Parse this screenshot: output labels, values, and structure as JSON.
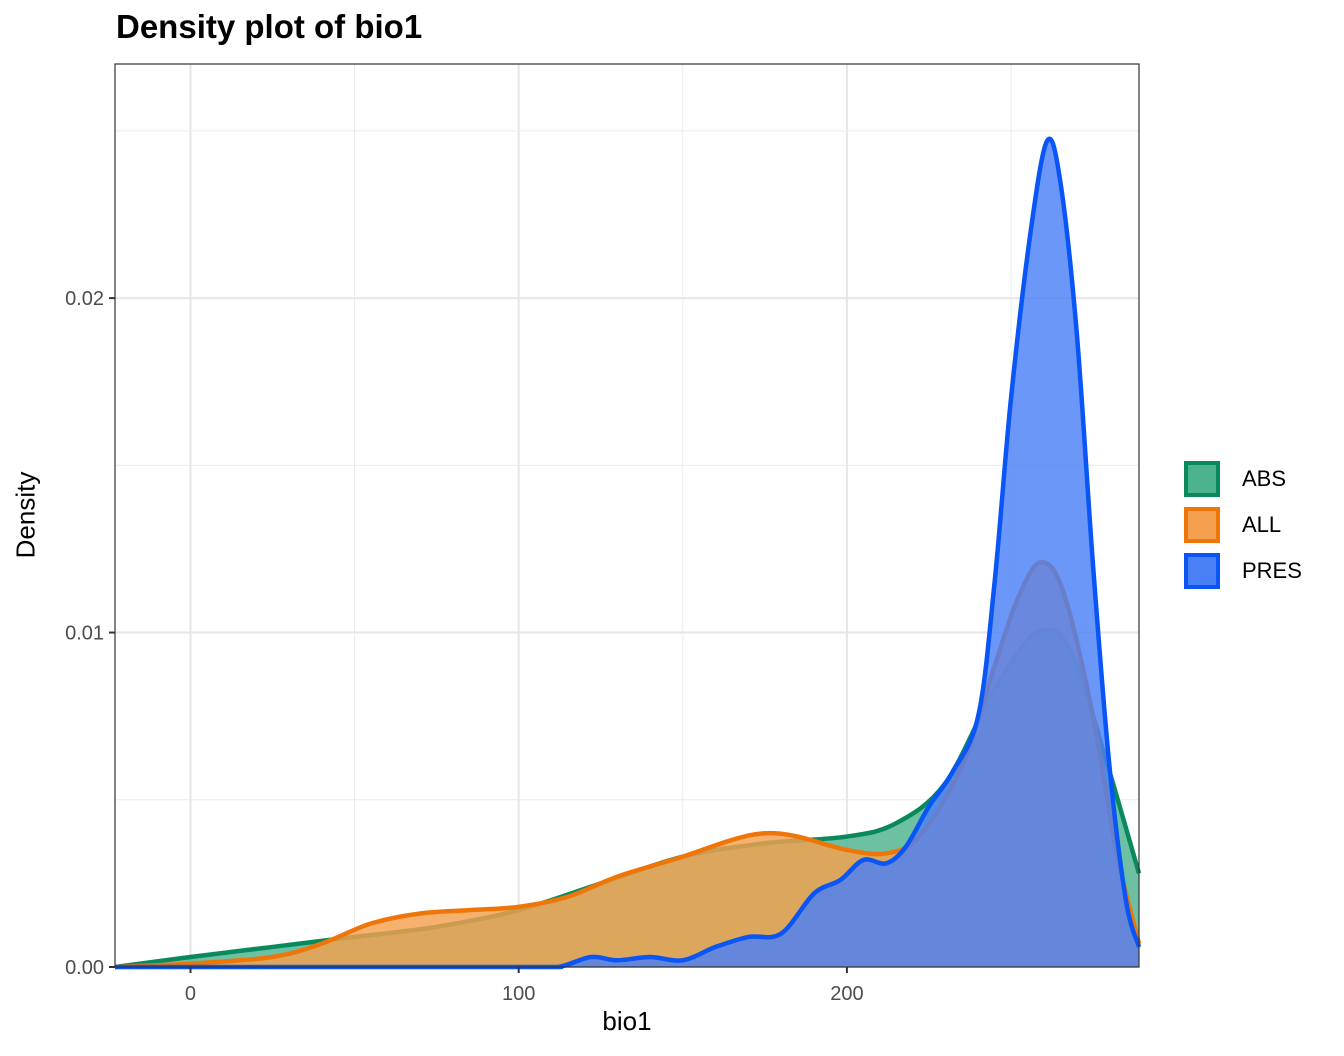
{
  "chart_data": {
    "type": "area",
    "title": "Density plot of bio1",
    "xlabel": "bio1",
    "ylabel": "Density",
    "xlim": [
      -23,
      289
    ],
    "ylim": [
      0,
      0.027
    ],
    "x_ticks": [
      0,
      100,
      200
    ],
    "x_tick_labels": [
      "0",
      "100",
      "200"
    ],
    "y_ticks": [
      0,
      0.01,
      0.02
    ],
    "y_tick_labels": [
      "0.00",
      "0.01",
      "0.02"
    ],
    "grid": true,
    "legend_position": "right",
    "series": [
      {
        "name": "ABS",
        "line_color": "#0a8a5c",
        "fill_color": "#4db38e",
        "points": [
          [
            -23,
            0.0
          ],
          [
            0,
            0.0003
          ],
          [
            25,
            0.0006
          ],
          [
            50,
            0.0009
          ],
          [
            75,
            0.0012
          ],
          [
            100,
            0.0017
          ],
          [
            125,
            0.0025
          ],
          [
            150,
            0.0033
          ],
          [
            175,
            0.0037
          ],
          [
            200,
            0.0039
          ],
          [
            215,
            0.0043
          ],
          [
            230,
            0.0055
          ],
          [
            245,
            0.0083
          ],
          [
            258,
            0.01
          ],
          [
            268,
            0.0095
          ],
          [
            278,
            0.0065
          ],
          [
            289,
            0.0028
          ]
        ]
      },
      {
        "name": "ALL",
        "line_color": "#ee7609",
        "fill_color": "#f5a04e",
        "points": [
          [
            -23,
            0.0
          ],
          [
            0,
            0.0001
          ],
          [
            25,
            0.0003
          ],
          [
            40,
            0.0007
          ],
          [
            55,
            0.0013
          ],
          [
            70,
            0.0016
          ],
          [
            85,
            0.0017
          ],
          [
            100,
            0.0018
          ],
          [
            115,
            0.0021
          ],
          [
            130,
            0.0027
          ],
          [
            150,
            0.0033
          ],
          [
            165,
            0.0038
          ],
          [
            175,
            0.004
          ],
          [
            185,
            0.0039
          ],
          [
            200,
            0.0035
          ],
          [
            212,
            0.0034
          ],
          [
            222,
            0.0039
          ],
          [
            235,
            0.006
          ],
          [
            245,
            0.009
          ],
          [
            252,
            0.011
          ],
          [
            259,
            0.0121
          ],
          [
            266,
            0.0112
          ],
          [
            275,
            0.0075
          ],
          [
            282,
            0.0035
          ],
          [
            289,
            0.0007
          ]
        ]
      },
      {
        "name": "PRES",
        "line_color": "#0a55f5",
        "fill_color": "#4a80f6",
        "points": [
          [
            -23,
            0.0
          ],
          [
            100,
            0.0
          ],
          [
            112,
            0.0
          ],
          [
            122,
            0.0003
          ],
          [
            130,
            0.0002
          ],
          [
            140,
            0.0003
          ],
          [
            150,
            0.0002
          ],
          [
            160,
            0.0006
          ],
          [
            170,
            0.0009
          ],
          [
            180,
            0.001
          ],
          [
            190,
            0.0022
          ],
          [
            198,
            0.0026
          ],
          [
            205,
            0.0032
          ],
          [
            212,
            0.0031
          ],
          [
            218,
            0.0036
          ],
          [
            225,
            0.0048
          ],
          [
            232,
            0.0058
          ],
          [
            240,
            0.0075
          ],
          [
            245,
            0.0115
          ],
          [
            250,
            0.017
          ],
          [
            256,
            0.022
          ],
          [
            261,
            0.0247
          ],
          [
            265,
            0.0235
          ],
          [
            270,
            0.019
          ],
          [
            275,
            0.012
          ],
          [
            280,
            0.006
          ],
          [
            285,
            0.002
          ],
          [
            289,
            0.0006
          ]
        ]
      }
    ]
  }
}
